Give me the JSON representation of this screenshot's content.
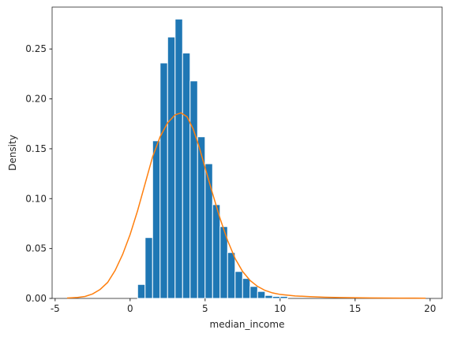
{
  "chart_data": {
    "type": "bar",
    "xlabel": "median_income",
    "ylabel": "Density",
    "xlim": [
      -5.2,
      20.8
    ],
    "ylim": [
      0,
      0.292
    ],
    "xticks": [
      -5,
      0,
      5,
      10,
      15,
      20
    ],
    "yticks": [
      0.0,
      0.05,
      0.1,
      0.15,
      0.2,
      0.25
    ],
    "ytick_labels": [
      "0.00",
      "0.05",
      "0.10",
      "0.15",
      "0.20",
      "0.25"
    ],
    "grid": false,
    "colors": {
      "bars": "#1f77b4",
      "curve": "#ff7f0e",
      "edge": "#ffffff"
    },
    "histogram": {
      "bin_edges": [
        0.5,
        1.0,
        1.5,
        2.0,
        2.5,
        3.0,
        3.5,
        4.0,
        4.5,
        5.0,
        5.5,
        6.0,
        6.5,
        7.0,
        7.5,
        8.0,
        8.5,
        9.0,
        9.5,
        10.0,
        10.5
      ],
      "densities": [
        0.014,
        0.061,
        0.158,
        0.236,
        0.262,
        0.28,
        0.246,
        0.218,
        0.162,
        0.135,
        0.094,
        0.072,
        0.046,
        0.027,
        0.02,
        0.012,
        0.007,
        0.003,
        0.002,
        0.002
      ]
    },
    "density_curve": {
      "x": [
        -4.2,
        -3.5,
        -3.0,
        -2.5,
        -2.0,
        -1.5,
        -1.0,
        -0.5,
        0.0,
        0.5,
        1.0,
        1.5,
        2.0,
        2.5,
        3.0,
        3.4,
        3.8,
        4.2,
        4.6,
        5.0,
        5.5,
        6.0,
        6.5,
        7.0,
        7.5,
        8.0,
        8.5,
        9.0,
        9.5,
        10.0,
        11.0,
        12.0,
        13.0,
        14.0,
        15.0,
        16.0,
        17.0,
        18.0,
        19.0,
        19.7
      ],
      "y": [
        0.0004,
        0.001,
        0.002,
        0.0045,
        0.009,
        0.016,
        0.028,
        0.044,
        0.064,
        0.088,
        0.115,
        0.142,
        0.162,
        0.176,
        0.184,
        0.186,
        0.182,
        0.17,
        0.152,
        0.131,
        0.105,
        0.08,
        0.058,
        0.04,
        0.027,
        0.018,
        0.012,
        0.008,
        0.0055,
        0.004,
        0.0025,
        0.0018,
        0.0012,
        0.0009,
        0.0007,
        0.0005,
        0.0004,
        0.0003,
        0.0003,
        0.0002
      ]
    }
  }
}
